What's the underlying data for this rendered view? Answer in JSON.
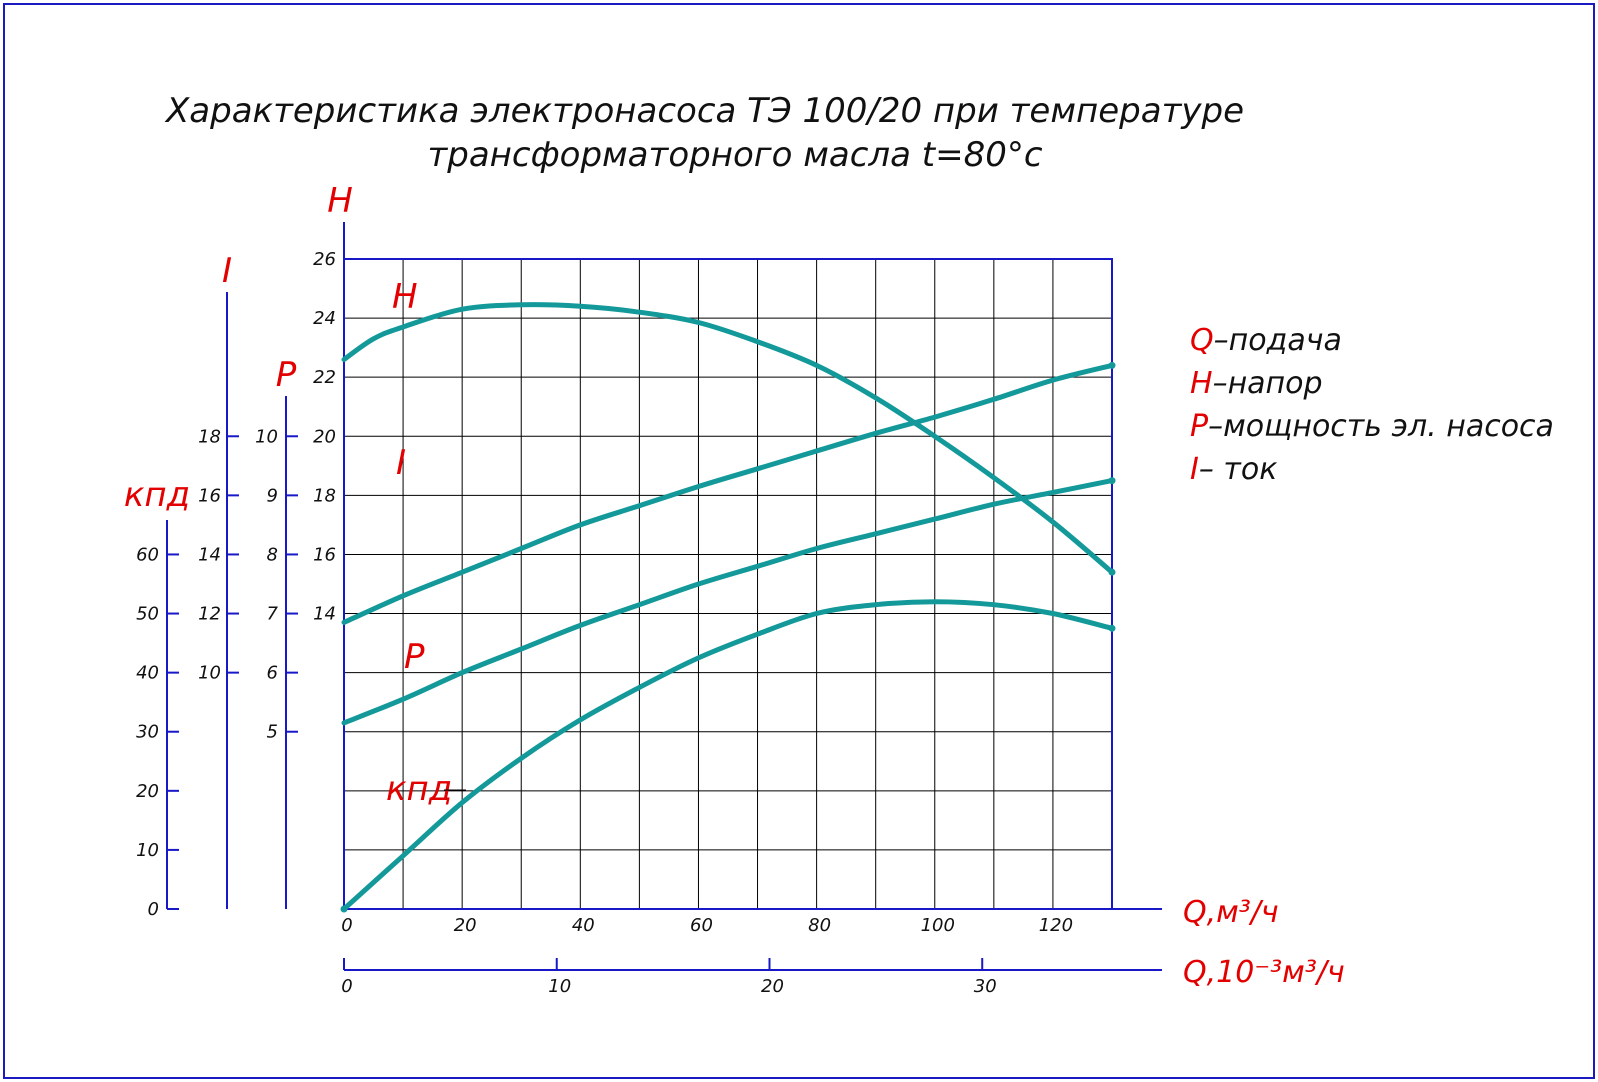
{
  "chart_data": {
    "type": "line",
    "title_line1": "Характеристика электронасоса ТЭ 100/20 при температуре",
    "title_line2": "трансформаторного масла t=80°с",
    "x": {
      "label": "Q,м³/ч",
      "range": [
        0,
        130
      ],
      "ticks": [
        0,
        20,
        40,
        60,
        80,
        100,
        120
      ],
      "tick_labels": [
        "0",
        "20",
        "40",
        "60",
        "80",
        "100",
        "120"
      ]
    },
    "x2": {
      "label": "Q,10⁻³м³/ч",
      "range": [
        0,
        36.1
      ],
      "ticks": [
        0,
        10,
        20,
        30
      ],
      "tick_labels": [
        "0",
        "10",
        "20",
        "30"
      ]
    },
    "axes": {
      "H": {
        "label": "H",
        "range": [
          4,
          26
        ],
        "ticks": [
          14,
          16,
          18,
          20,
          22,
          24,
          26
        ],
        "tick_labels": [
          "14",
          "16",
          "18",
          "20",
          "22",
          "24",
          "26"
        ]
      },
      "P": {
        "label": "P",
        "range": [
          2,
          13
        ],
        "ticks": [
          5,
          6,
          7,
          8,
          9,
          10
        ],
        "tick_labels": [
          "5",
          "6",
          "7",
          "8",
          "9",
          "10"
        ]
      },
      "I": {
        "label": "I",
        "range": [
          2,
          24
        ],
        "ticks": [
          10,
          12,
          14,
          16,
          18
        ],
        "tick_labels": [
          "10",
          "12",
          "14",
          "16",
          "18"
        ]
      },
      "eff": {
        "label": "кпд",
        "range": [
          0,
          110
        ],
        "ticks": [
          0,
          10,
          20,
          30,
          40,
          50,
          60
        ],
        "tick_labels": [
          "0",
          "10",
          "20",
          "30",
          "40",
          "50",
          "60"
        ]
      }
    },
    "series": [
      {
        "name": "H",
        "label": "H",
        "axis": "H",
        "x": [
          0,
          5,
          10,
          20,
          30,
          40,
          50,
          60,
          70,
          80,
          90,
          100,
          110,
          120,
          130
        ],
        "y": [
          22.6,
          23.3,
          23.7,
          24.3,
          24.45,
          24.4,
          24.2,
          23.85,
          23.2,
          22.4,
          21.3,
          20.0,
          18.6,
          17.1,
          15.4
        ]
      },
      {
        "name": "I",
        "label": "I",
        "axis": "I",
        "x": [
          0,
          10,
          20,
          30,
          40,
          50,
          60,
          70,
          80,
          90,
          100,
          110,
          120,
          130
        ],
        "y": [
          11.7,
          12.6,
          13.4,
          14.2,
          15.0,
          15.65,
          16.3,
          16.9,
          17.5,
          18.1,
          18.65,
          19.25,
          19.9,
          20.4
        ]
      },
      {
        "name": "P",
        "label": "P",
        "axis": "P",
        "x": [
          0,
          10,
          20,
          30,
          40,
          50,
          60,
          70,
          80,
          90,
          100,
          110,
          120,
          130
        ],
        "y": [
          5.15,
          5.55,
          6.0,
          6.4,
          6.8,
          7.15,
          7.5,
          7.8,
          8.1,
          8.35,
          8.6,
          8.85,
          9.05,
          9.25
        ]
      },
      {
        "name": "кпд",
        "label": "кпд",
        "axis": "eff",
        "x": [
          0,
          10,
          20,
          30,
          40,
          50,
          60,
          70,
          80,
          90,
          100,
          110,
          120,
          130
        ],
        "y": [
          0,
          9,
          18,
          25.5,
          32,
          37.5,
          42.5,
          46.5,
          50,
          51.5,
          52,
          51.5,
          50,
          47.5
        ]
      }
    ],
    "legend": [
      {
        "key": "Q",
        "text": "–подача"
      },
      {
        "key": "H",
        "text": "–напор"
      },
      {
        "key": "P",
        "text": "–мощность эл. насоса"
      },
      {
        "key": "I",
        "text": "– ток"
      }
    ],
    "grid": true,
    "legend_position": "right",
    "colors": {
      "curve": "#14999a",
      "axis": "#1818c8",
      "label": "#e30000",
      "grid": "#000000",
      "border": "#1a1ac0"
    }
  }
}
